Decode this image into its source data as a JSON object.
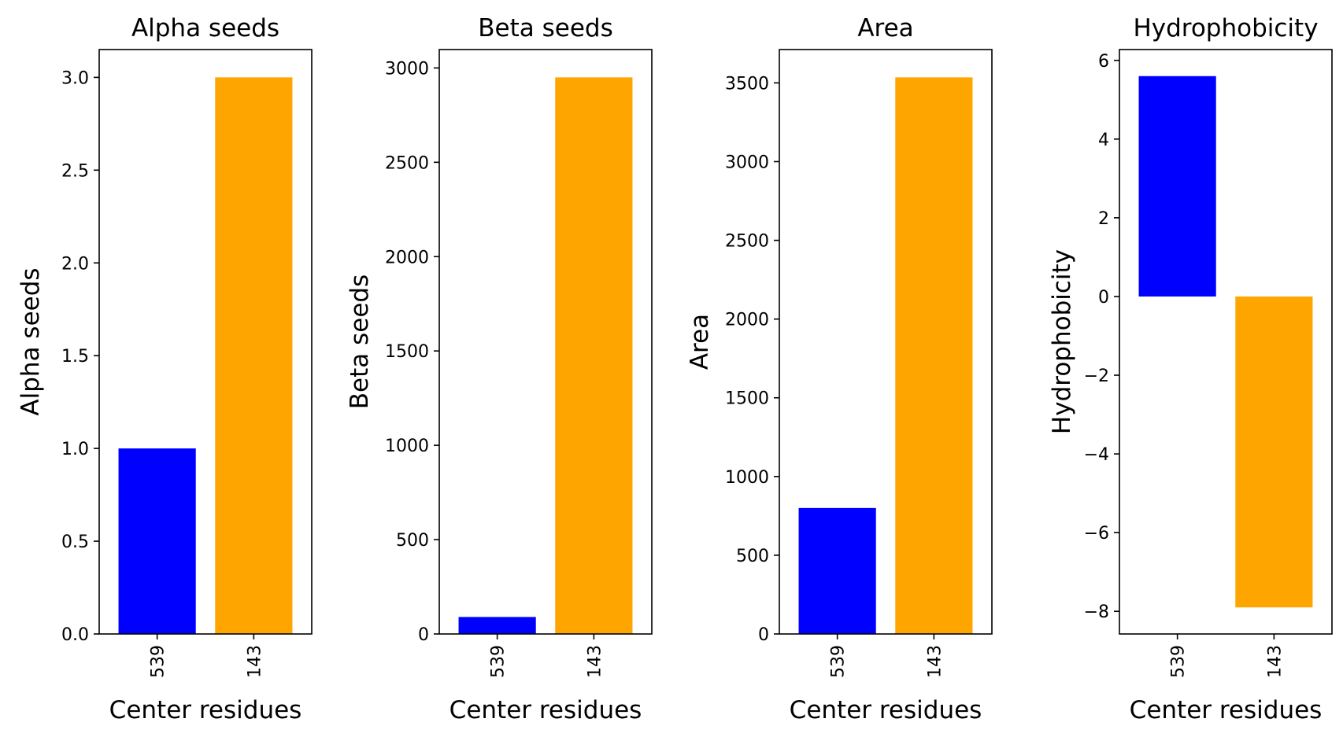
{
  "chart_data": [
    {
      "type": "bar",
      "title": "Alpha seeds",
      "xlabel": "Center residues",
      "ylabel": "Alpha seeds",
      "categories": [
        "539",
        "143"
      ],
      "values": [
        1,
        3
      ],
      "colors": [
        "#0000ff",
        "#ffa500"
      ],
      "ylim": [
        0,
        3.15
      ],
      "yticks": [
        0.0,
        0.5,
        1.0,
        1.5,
        2.0,
        2.5,
        3.0
      ],
      "ytick_labels": [
        "0.0",
        "0.5",
        "1.0",
        "1.5",
        "2.0",
        "2.5",
        "3.0"
      ],
      "grid": false
    },
    {
      "type": "bar",
      "title": "Beta seeds",
      "xlabel": "Center residues",
      "ylabel": "Beta seeds",
      "categories": [
        "539",
        "143"
      ],
      "values": [
        90,
        2950
      ],
      "colors": [
        "#0000ff",
        "#ffa500"
      ],
      "ylim": [
        0,
        3097.5
      ],
      "yticks": [
        0,
        500,
        1000,
        1500,
        2000,
        2500,
        3000
      ],
      "ytick_labels": [
        "0",
        "500",
        "1000",
        "1500",
        "2000",
        "2500",
        "3000"
      ],
      "grid": false
    },
    {
      "type": "bar",
      "title": "Area",
      "xlabel": "Center residues",
      "ylabel": "Area",
      "categories": [
        "539",
        "143"
      ],
      "values": [
        800,
        3535
      ],
      "colors": [
        "#0000ff",
        "#ffa500"
      ],
      "ylim": [
        0,
        3711.75
      ],
      "yticks": [
        0,
        500,
        1000,
        1500,
        2000,
        2500,
        3000,
        3500
      ],
      "ytick_labels": [
        "0",
        "500",
        "1000",
        "1500",
        "2000",
        "2500",
        "3000",
        "3500"
      ],
      "grid": false
    },
    {
      "type": "bar",
      "title": "Hydrophobicity",
      "xlabel": "Center residues",
      "ylabel": "Hydrophobicity",
      "categories": [
        "539",
        "143"
      ],
      "values": [
        5.6,
        -7.9
      ],
      "colors": [
        "#0000ff",
        "#ffa500"
      ],
      "ylim": [
        -8.575,
        6.275
      ],
      "yticks": [
        -8,
        -6,
        -4,
        -2,
        0,
        2,
        4,
        6
      ],
      "ytick_labels": [
        "−8",
        "−6",
        "−4",
        "−2",
        "0",
        "2",
        "4",
        "6"
      ],
      "grid": false
    }
  ]
}
